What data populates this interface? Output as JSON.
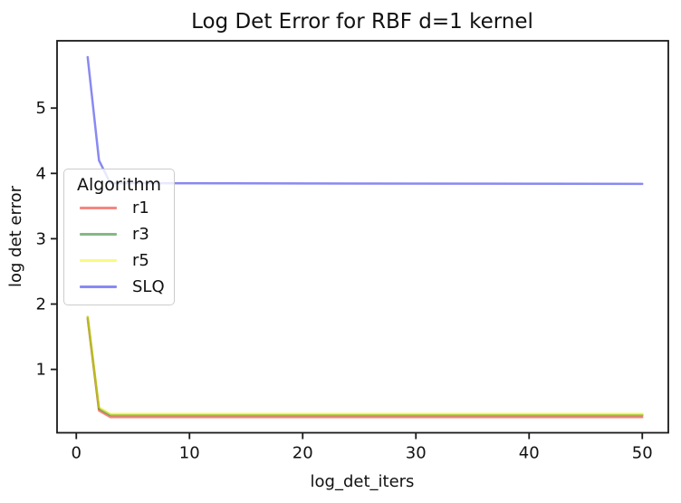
{
  "chart_data": {
    "type": "line",
    "title": "Log Det Error for RBF d=1 kernel",
    "xlabel": "log_det_iters",
    "ylabel": "log det error",
    "xlim": [
      -1.7,
      52.3
    ],
    "ylim": [
      0.03,
      6.03
    ],
    "xticks": [
      0,
      10,
      20,
      30,
      40,
      50
    ],
    "yticks": [
      1,
      2,
      3,
      4,
      5
    ],
    "grid": false,
    "legend": {
      "title": "Algorithm",
      "position": "center-left-inside",
      "entries": [
        "r1",
        "r3",
        "r5",
        "SLQ"
      ]
    },
    "style": {
      "line_width": 2.5,
      "line_opacity": 0.5,
      "axis_color": "#1a1a1a",
      "text_color": "#111111",
      "legend_border": "#cccccc",
      "legend_bg": "rgba(255,255,255,0.8)"
    },
    "series": [
      {
        "name": "r1",
        "color": "#eb1000",
        "points": [
          [
            1,
            1.78
          ],
          [
            2,
            0.37
          ],
          [
            3,
            0.27
          ],
          [
            50,
            0.27
          ]
        ]
      },
      {
        "name": "r3",
        "color": "#0a730a",
        "points": [
          [
            1,
            1.8
          ],
          [
            2,
            0.4
          ],
          [
            3,
            0.3
          ],
          [
            50,
            0.3
          ]
        ]
      },
      {
        "name": "r5",
        "color": "#f5f500",
        "points": [
          [
            1,
            1.81
          ],
          [
            2,
            0.42
          ],
          [
            3,
            0.32
          ],
          [
            50,
            0.32
          ]
        ]
      },
      {
        "name": "SLQ",
        "color": "#1414e6",
        "points": [
          [
            1,
            5.78
          ],
          [
            2,
            4.2
          ],
          [
            3,
            3.85
          ],
          [
            50,
            3.84
          ]
        ]
      }
    ]
  }
}
